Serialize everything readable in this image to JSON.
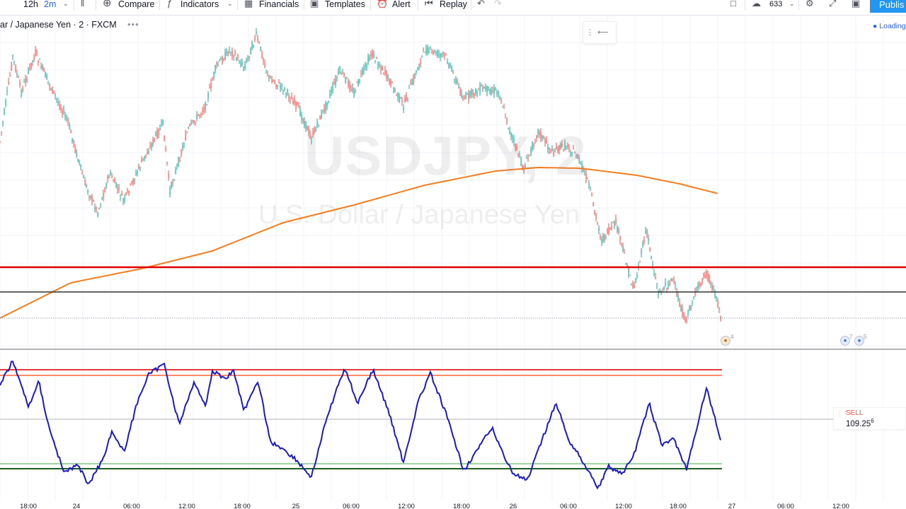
{
  "toolbar": {
    "interval": "12h",
    "interval_active": "2m",
    "compare": "Compare",
    "indicators": "Indicators",
    "financials": "Financials",
    "templates": "Templates",
    "alert": "Alert",
    "replay": "Replay",
    "layout_count": "633",
    "publish": "Publis"
  },
  "chart": {
    "symbol_title": "ar / Japanese Yen · 2 · FXCM",
    "loading": "Loading",
    "watermark_symbol": "USDJPY, 2",
    "watermark_description": "U.S. Dollar / Japanese Yen",
    "sell_label": "SELL",
    "sell_price": "109.25",
    "sell_price_sup": "6",
    "event_a_count": "4",
    "event_b_count_1": "7",
    "event_b_count_2": "5",
    "x_axis_labels": [
      "18:00",
      "24",
      "06:00",
      "12:00",
      "18:00",
      "25",
      "06:00",
      "12:00",
      "18:00",
      "26",
      "06:00",
      "12:00",
      "18:00",
      "27",
      "06:00",
      "12:00"
    ],
    "colors": {
      "price_up": "#26a69a",
      "price_down": "#ef5350",
      "moving_average": "#f57c1f",
      "resistance_line": "#e00000",
      "support_line": "#333333",
      "oscillator": "#1a1acc",
      "overbought_upper": "#e53935",
      "overbought_lower": "#ff8a65",
      "oversold_upper": "#81c784",
      "oversold_lower": "#1b5e20"
    }
  }
}
